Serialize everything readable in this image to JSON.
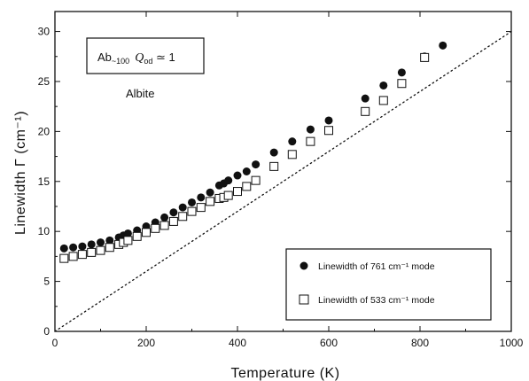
{
  "chart_data": {
    "type": "scatter",
    "xlabel": "Temperature  (K)",
    "ylabel": "Linewidth  Γ  (cm⁻¹)",
    "xlim": [
      0,
      1000
    ],
    "ylim": [
      0,
      32
    ],
    "xticks": [
      0,
      200,
      400,
      600,
      800,
      1000
    ],
    "yticks": [
      0,
      5,
      10,
      15,
      20,
      25,
      30
    ],
    "grid": false,
    "legend_position": "bottom-right",
    "annotations": {
      "box_text_main": "Ab",
      "box_text_sub": "~100",
      "box_text_q": "Q",
      "box_text_q_sub": "od",
      "box_text_rel": " ≃ 1",
      "label": "Albite"
    },
    "series": [
      {
        "name": "Linewidth of  761 cm⁻¹ mode",
        "marker": "filled-circle",
        "x": [
          20,
          40,
          60,
          80,
          100,
          120,
          140,
          150,
          160,
          180,
          200,
          220,
          240,
          260,
          280,
          300,
          320,
          340,
          360,
          370,
          380,
          400,
          420,
          440,
          480,
          520,
          560,
          600,
          680,
          720,
          760,
          810,
          850
        ],
        "y": [
          8.3,
          8.4,
          8.5,
          8.7,
          8.9,
          9.1,
          9.4,
          9.6,
          9.8,
          10.1,
          10.5,
          10.9,
          11.4,
          11.9,
          12.4,
          12.9,
          13.4,
          13.9,
          14.6,
          14.8,
          15.1,
          15.6,
          16.0,
          16.7,
          17.9,
          19.0,
          20.2,
          21.1,
          23.3,
          24.6,
          25.9,
          27.5,
          28.6
        ]
      },
      {
        "name": "Linewidth of  533 cm⁻¹ mode",
        "marker": "open-square",
        "x": [
          20,
          40,
          60,
          80,
          100,
          120,
          140,
          150,
          160,
          180,
          200,
          220,
          240,
          260,
          280,
          300,
          320,
          340,
          360,
          370,
          380,
          400,
          420,
          440,
          480,
          520,
          560,
          600,
          680,
          720,
          760,
          810
        ],
        "y": [
          7.3,
          7.5,
          7.7,
          7.9,
          8.1,
          8.4,
          8.7,
          8.9,
          9.1,
          9.5,
          9.9,
          10.3,
          10.6,
          11.0,
          11.5,
          12.0,
          12.4,
          13.0,
          13.3,
          13.4,
          13.6,
          14.0,
          14.5,
          15.1,
          16.5,
          17.7,
          19.0,
          20.1,
          22.0,
          23.1,
          24.8,
          27.4
        ]
      }
    ],
    "reference_line": {
      "style": "dotted",
      "x": [
        0,
        1000
      ],
      "y": [
        0,
        30
      ]
    }
  }
}
